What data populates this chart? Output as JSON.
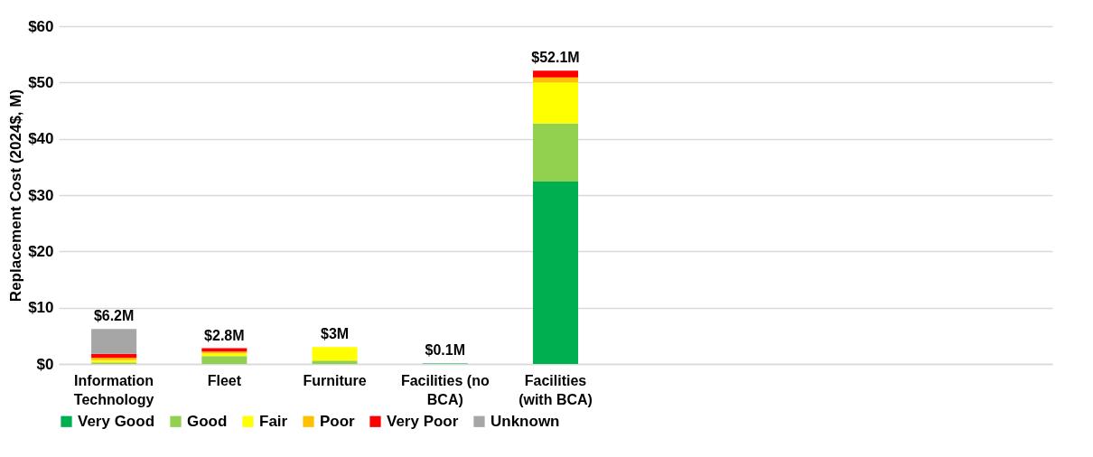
{
  "chart_data": {
    "type": "bar",
    "stacked": true,
    "ylabel": "Replacement Cost (2024$, M)",
    "categories": [
      "Information Technology",
      "Fleet",
      "Furniture",
      "Facilities (no BCA)",
      "Facilities (with BCA)",
      null,
      null,
      null,
      null
    ],
    "series": [
      {
        "name": "Very Good",
        "color": "#00b050",
        "values": [
          0,
          0,
          0,
          0.1,
          32.4,
          null,
          null,
          null,
          null
        ]
      },
      {
        "name": "Good",
        "color": "#92d050",
        "values": [
          0.3,
          1.4,
          0.6,
          0,
          10.3,
          null,
          null,
          null,
          null
        ]
      },
      {
        "name": "Fair",
        "color": "#ffff00",
        "values": [
          0.4,
          0.5,
          2.4,
          0,
          7.3,
          null,
          null,
          null,
          null
        ]
      },
      {
        "name": "Poor",
        "color": "#ffc000",
        "values": [
          0.4,
          0.3,
          0,
          0,
          0.9,
          null,
          null,
          null,
          null
        ]
      },
      {
        "name": "Very Poor",
        "color": "#ff0000",
        "values": [
          0.7,
          0.6,
          0,
          0,
          1.2,
          null,
          null,
          null,
          null
        ]
      },
      {
        "name": "Unknown",
        "color": "#a6a6a6",
        "values": [
          4.4,
          0,
          0,
          0,
          0,
          null,
          null,
          null,
          null
        ]
      }
    ],
    "totals": [
      "$6.2M",
      "$2.8M",
      "$3M",
      "$0.1M",
      "$52.1M",
      null,
      null,
      null,
      null
    ],
    "ylim": [
      0,
      60
    ],
    "yticks": [
      {
        "value": 0,
        "label": "$0"
      },
      {
        "value": 10,
        "label": "$10"
      },
      {
        "value": 20,
        "label": "$20"
      },
      {
        "value": 30,
        "label": "$30"
      },
      {
        "value": 40,
        "label": "$40"
      },
      {
        "value": 50,
        "label": "$50"
      },
      {
        "value": 60,
        "label": "$60"
      }
    ],
    "grid": "y",
    "legend": "bottom left"
  }
}
